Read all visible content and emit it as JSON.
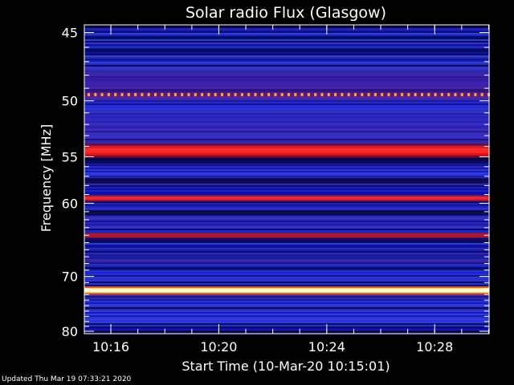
{
  "chart_data": {
    "type": "heatmap",
    "title": "Solar radio Flux (Glasgow)",
    "ylabel": "Frequency [MHz]",
    "xlabel": "Start Time (10-Mar-20 10:15:01)",
    "y_ticks": [
      "45",
      "50",
      "55",
      "60",
      "70",
      "80"
    ],
    "y_tick_values": [
      45,
      50,
      55,
      60,
      70,
      80
    ],
    "ylim": [
      44.5,
      80.5
    ],
    "y_scale": "reciprocal",
    "x_ticks": [
      "10:16",
      "10:20",
      "10:24",
      "10:28"
    ],
    "x_tick_values": [
      "10:16",
      "10:20",
      "10:24",
      "10:28"
    ],
    "xlim": [
      "10:15:01",
      "10:30:01"
    ],
    "colormap": [
      "#000010",
      "#0c0cb4",
      "#2a35d8",
      "#b0142a",
      "#ff1a1a",
      "#ffffc8"
    ],
    "features": [
      {
        "kind": "band",
        "frequency_mhz": 49.5,
        "intensity": "dotted-orange"
      },
      {
        "kind": "band",
        "frequency_mhz": 54.4,
        "intensity": "strong-red"
      },
      {
        "kind": "band",
        "frequency_mhz": 59.4,
        "intensity": "red"
      },
      {
        "kind": "band",
        "frequency_mhz": 64.0,
        "intensity": "dark-red"
      },
      {
        "kind": "band",
        "frequency_mhz": 72.3,
        "intensity": "white-hot"
      }
    ]
  },
  "footer": {
    "updated_text": "Updated Thu Mar 19 07:33:21 2020"
  }
}
